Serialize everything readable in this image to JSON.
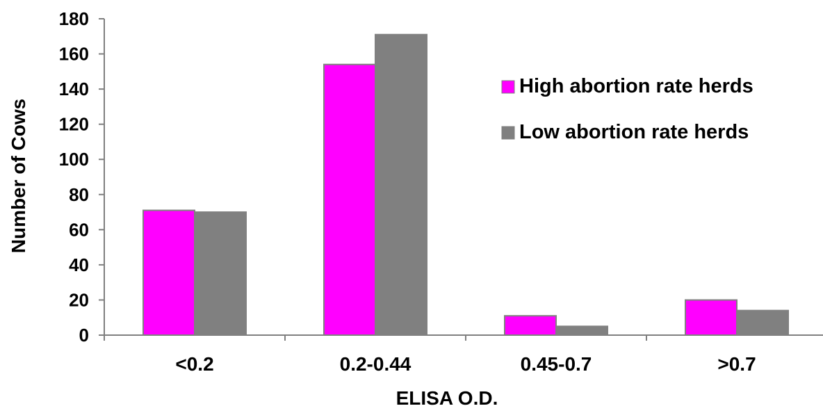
{
  "chart_data": {
    "type": "bar",
    "title": "",
    "xlabel": "ELISA O.D.",
    "ylabel": "Number of Cows",
    "ylim": [
      0,
      180
    ],
    "yticks": [
      0,
      20,
      40,
      60,
      80,
      100,
      120,
      140,
      160,
      180
    ],
    "categories": [
      "<0.2",
      "0.2-0.44",
      "0.45-0.7",
      ">0.7"
    ],
    "series": [
      {
        "name": "High abortion rate herds",
        "color": "#FF00FF",
        "values": [
          71,
          154,
          11,
          20
        ]
      },
      {
        "name": "Low abortion rate herds",
        "color": "#808080",
        "values": [
          70,
          171,
          5,
          14
        ]
      }
    ],
    "legend_position": "top-right",
    "grid": false
  }
}
